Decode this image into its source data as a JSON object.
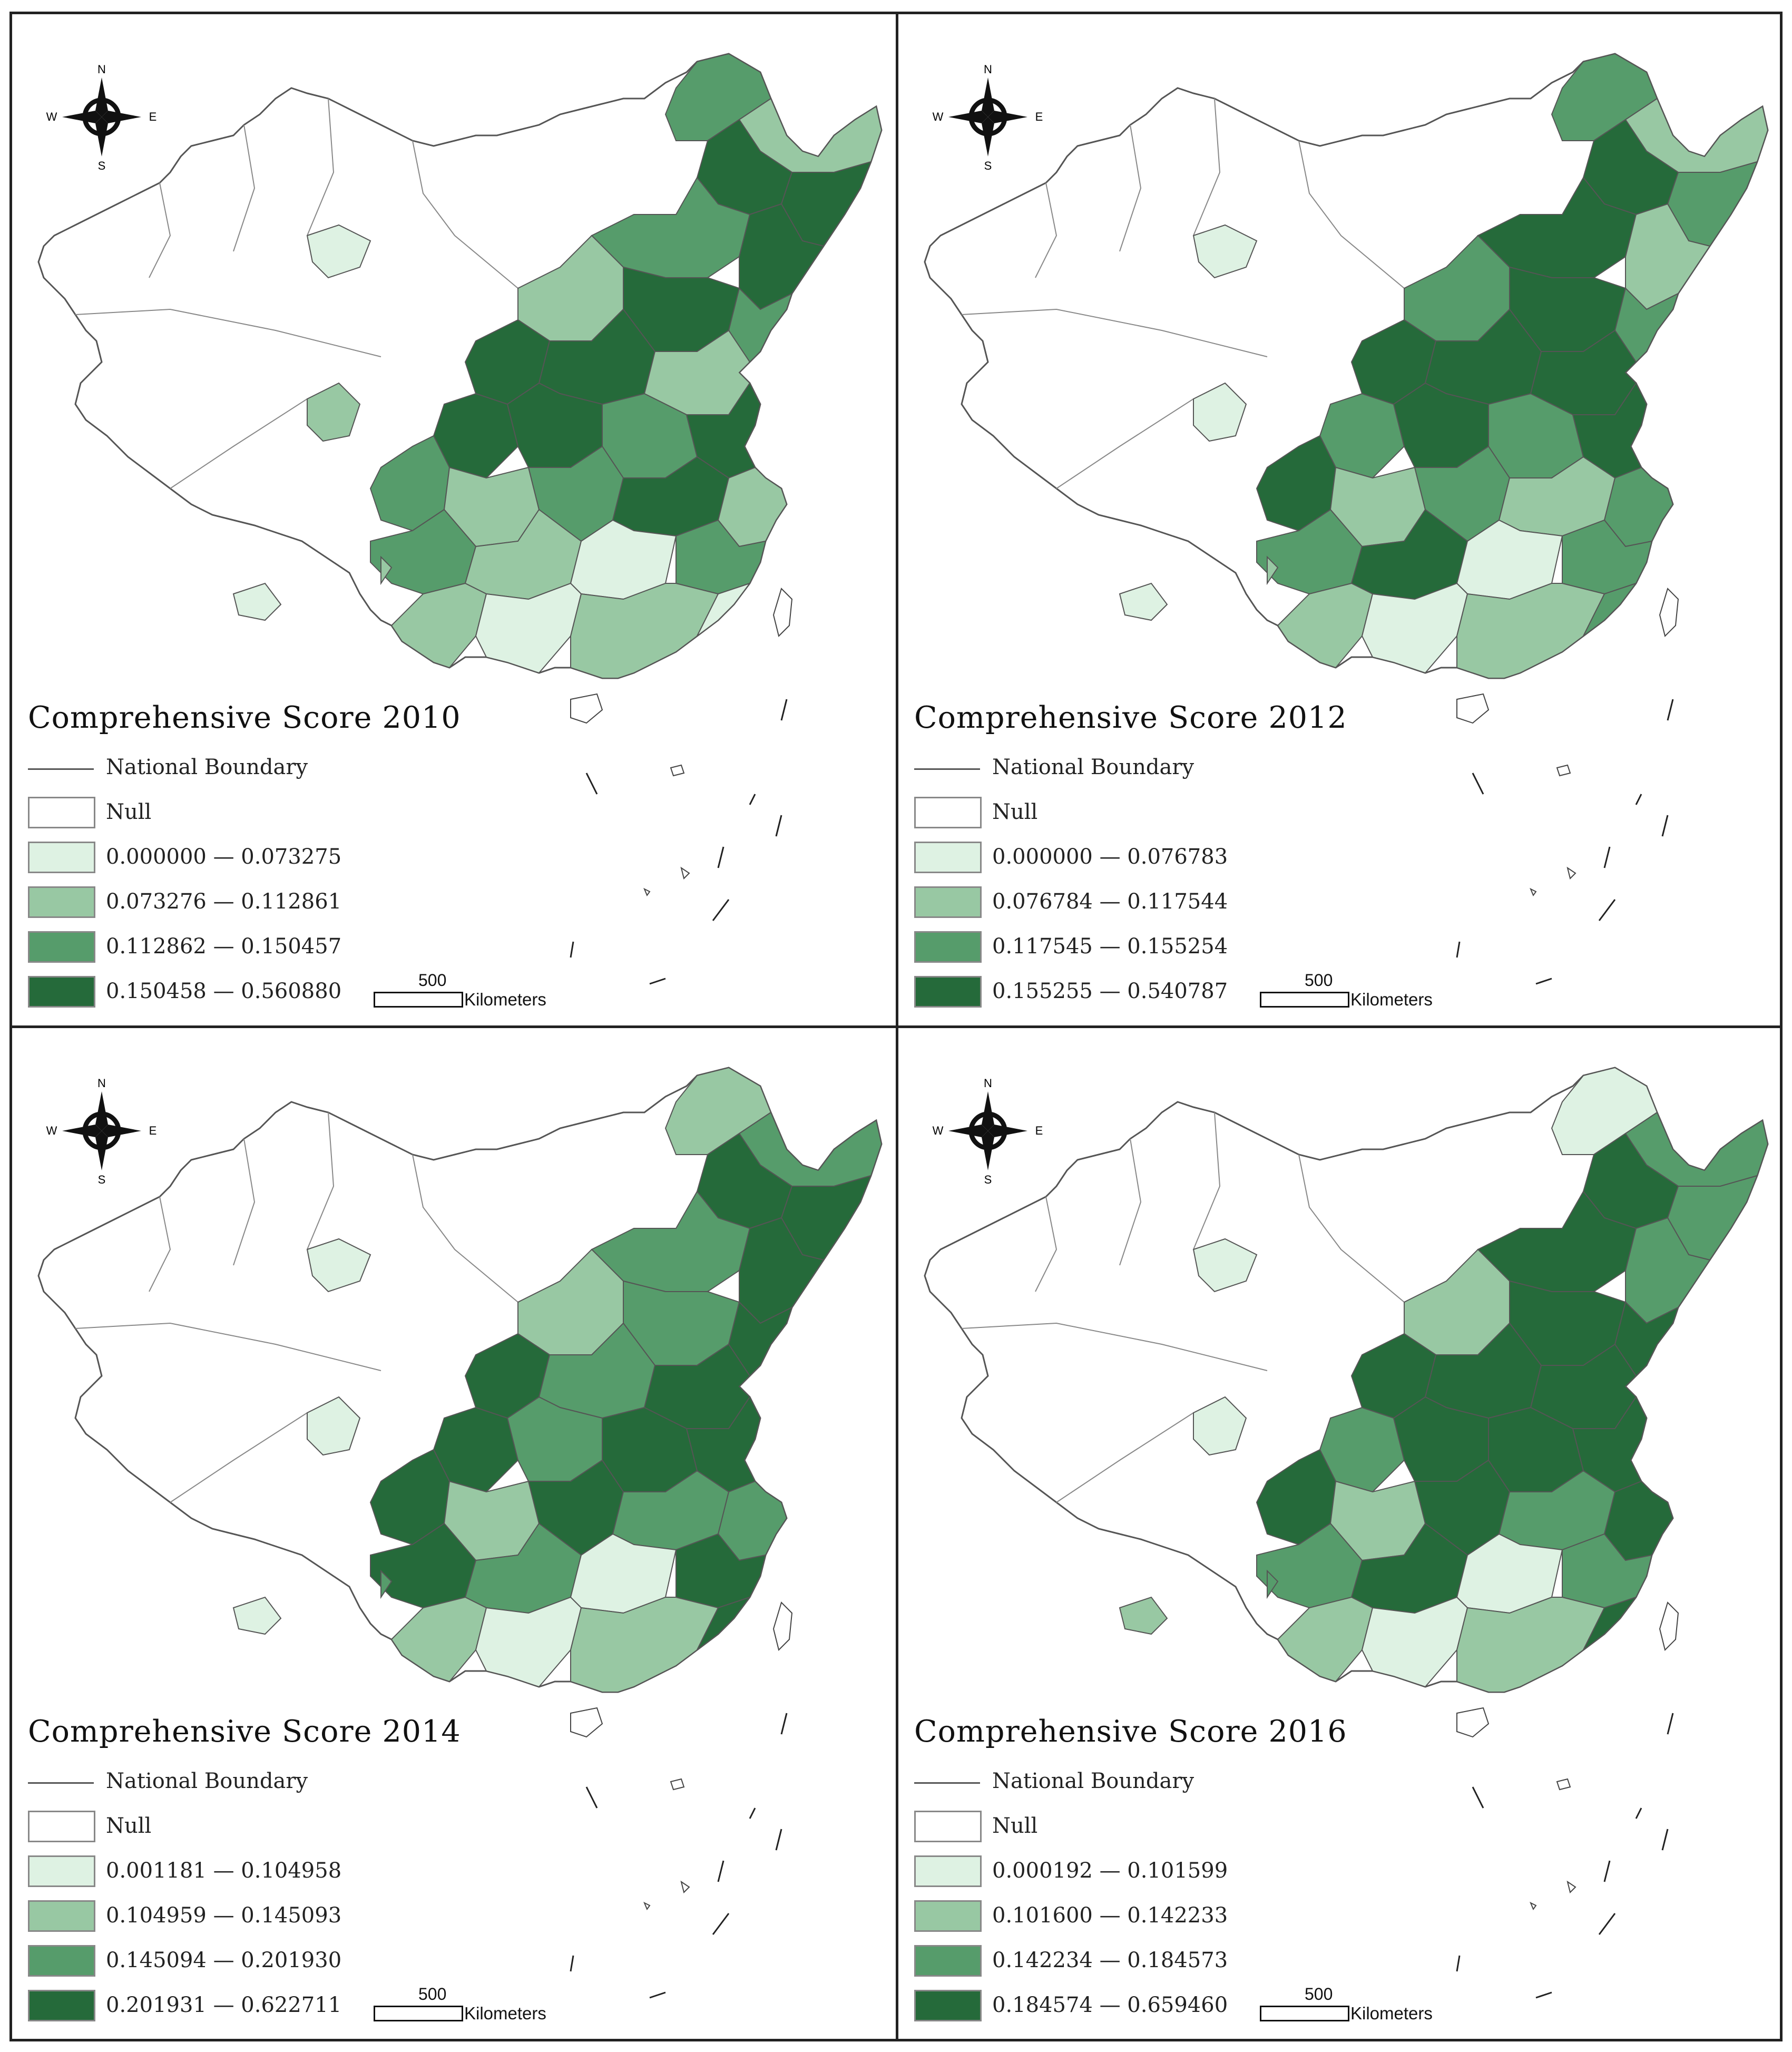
{
  "colors": {
    "null": "#ffffff",
    "class1": "#def2e3",
    "class2": "#98c8a3",
    "class3": "#569c6b",
    "class4": "#256a3a",
    "boundary": "#555555"
  },
  "compass_labels": {
    "n": "N",
    "s": "S",
    "e": "E",
    "w": "W"
  },
  "panels": [
    {
      "title": "Comprehensive Score 2010",
      "legend": {
        "boundary": "National Boundary",
        "null": "Null",
        "class1": "0.000000 — 0.073275",
        "class2": "0.073276 — 0.112861",
        "class3": "0.112862 — 0.150457",
        "class4": "0.150458 — 0.560880"
      },
      "scale": {
        "value": "500",
        "unit": "Kilometers"
      }
    },
    {
      "title": "Comprehensive Score 2012",
      "legend": {
        "boundary": "National Boundary",
        "null": "Null",
        "class1": "0.000000 — 0.076783",
        "class2": "0.076784 — 0.117544",
        "class3": "0.117545 — 0.155254",
        "class4": "0.155255 — 0.540787"
      },
      "scale": {
        "value": "500",
        "unit": "Kilometers"
      }
    },
    {
      "title": "Comprehensive Score 2014",
      "legend": {
        "boundary": "National Boundary",
        "null": "Null",
        "class1": "0.001181 — 0.104958",
        "class2": "0.104959 — 0.145093",
        "class3": "0.145094 — 0.201930",
        "class4": "0.201931 — 0.622711"
      },
      "scale": {
        "value": "500",
        "unit": "Kilometers"
      }
    },
    {
      "title": "Comprehensive Score 2016",
      "legend": {
        "boundary": "National Boundary",
        "null": "Null",
        "class1": "0.000192 — 0.101599",
        "class2": "0.101600 — 0.142233",
        "class3": "0.142234 — 0.184573",
        "class4": "0.184574 — 0.659460"
      },
      "scale": {
        "value": "500",
        "unit": "Kilometers"
      }
    }
  ]
}
